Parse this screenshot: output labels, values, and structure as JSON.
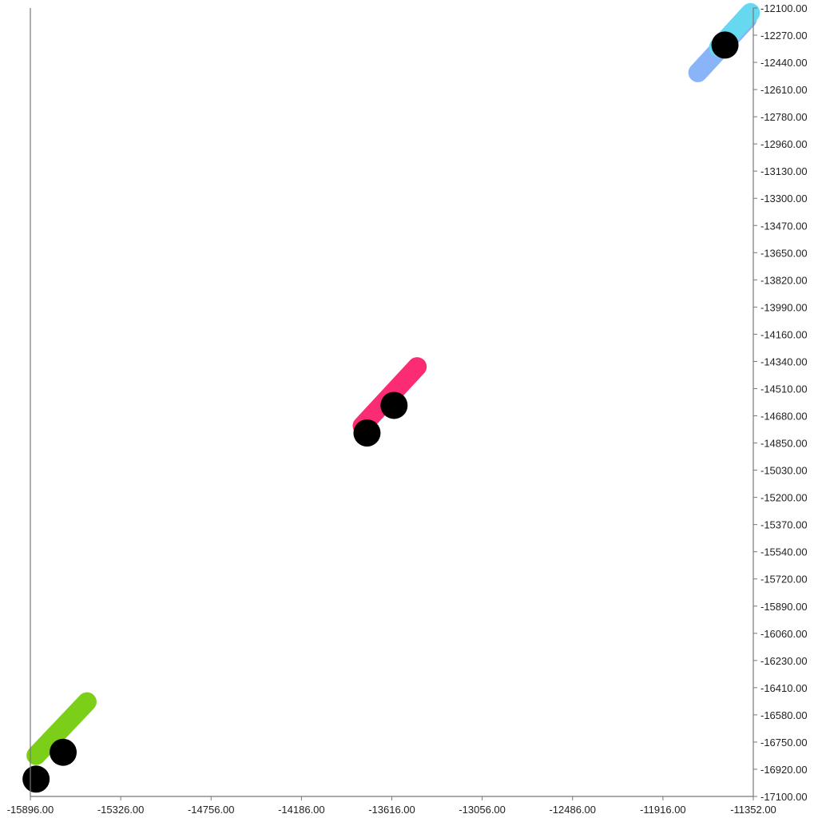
{
  "chart_data": {
    "type": "scatter",
    "title": "",
    "xlabel": "",
    "ylabel": "",
    "xlim": [
      -15896.0,
      -11352.0
    ],
    "ylim": [
      -17100.0,
      -12100.0
    ],
    "y_axis_side": "right",
    "grid": false,
    "x_ticks": [
      "-15896.00",
      "-15326.00",
      "-14756.00",
      "-14186.00",
      "-13616.00",
      "-13056.00",
      "-12486.00",
      "-11916.00",
      "-11352.00"
    ],
    "y_ticks": [
      "-12100.00",
      "-12270.00",
      "-12440.00",
      "-12610.00",
      "-12780.00",
      "-12960.00",
      "-13130.00",
      "-13300.00",
      "-13470.00",
      "-13650.00",
      "-13820.00",
      "-13990.00",
      "-14160.00",
      "-14340.00",
      "-14510.00",
      "-14680.00",
      "-14850.00",
      "-15030.00",
      "-15200.00",
      "-15370.00",
      "-15540.00",
      "-15720.00",
      "-15890.00",
      "-16060.00",
      "-16230.00",
      "-16410.00",
      "-16580.00",
      "-16750.00",
      "-16920.00",
      "-17100.00"
    ],
    "series": [
      {
        "color": "#7ccf18",
        "segments": [
          [
            -15860,
            -16840,
            -15540,
            -16500
          ]
        ],
        "markers": [
          [
            -15860,
            -16990
          ],
          [
            -15690,
            -16820
          ]
        ]
      },
      {
        "color": "#fc2c74",
        "segments": [
          [
            -13810,
            -14750,
            -13465,
            -14375
          ]
        ],
        "markers": [
          [
            -13780,
            -14795
          ],
          [
            -13610,
            -14620
          ]
        ]
      },
      {
        "color": "#8ab4f8",
        "segments": [
          [
            -11700,
            -12510,
            -11390,
            -12170
          ]
        ],
        "markers": []
      },
      {
        "color": "#66d8f0",
        "segments": [
          [
            -11570,
            -12350,
            -11370,
            -12130
          ]
        ],
        "markers": [
          [
            -11530,
            -12335
          ]
        ]
      }
    ]
  }
}
